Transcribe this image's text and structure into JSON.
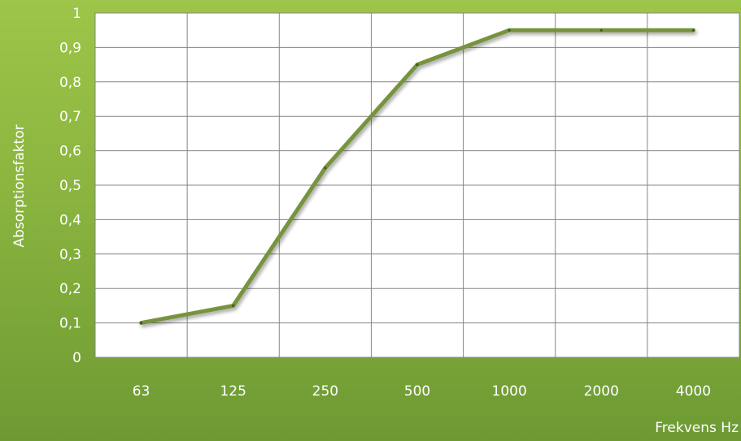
{
  "chart_data": {
    "type": "line",
    "categories": [
      "63",
      "125",
      "250",
      "500",
      "1000",
      "2000",
      "4000"
    ],
    "series": [
      {
        "values": [
          0.1,
          0.15,
          0.55,
          0.85,
          0.95,
          0.95,
          0.95
        ]
      }
    ],
    "xlabel": "Frekvens Hz",
    "ylabel": "Absorptionsfaktor",
    "ylim": [
      0,
      1
    ],
    "yticks": [
      "0",
      "0,1",
      "0,2",
      "0,3",
      "0,4",
      "0,5",
      "0,6",
      "0,7",
      "0,8",
      "0,9",
      "1"
    ],
    "grid": true,
    "legend": "none",
    "colors": {
      "background": "#8ab43f",
      "plot_area": "#ffffff",
      "line": "#77933c",
      "grid": "#868686",
      "text": "#ffffff"
    }
  }
}
